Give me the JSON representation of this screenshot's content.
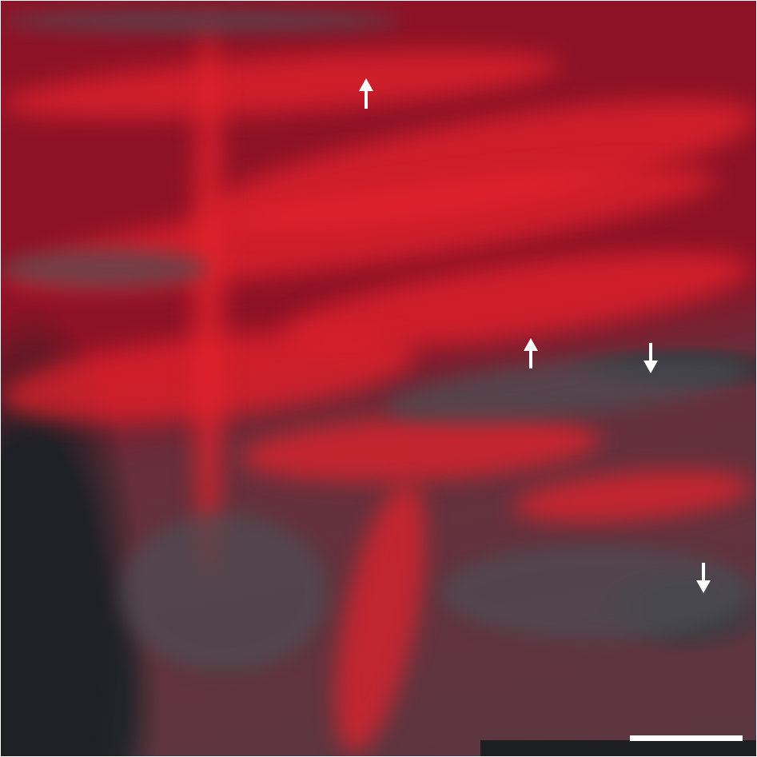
{
  "image": {
    "colors": {
      "base": "#8e1226",
      "bright": "#e3222c",
      "gray": "#4e4d53",
      "dark": "#1f2126",
      "annotation": "#ffffff"
    },
    "arrows": [
      {
        "direction": "up"
      },
      {
        "direction": "up"
      },
      {
        "direction": "down"
      },
      {
        "direction": "down"
      }
    ],
    "scale_bar": true
  }
}
